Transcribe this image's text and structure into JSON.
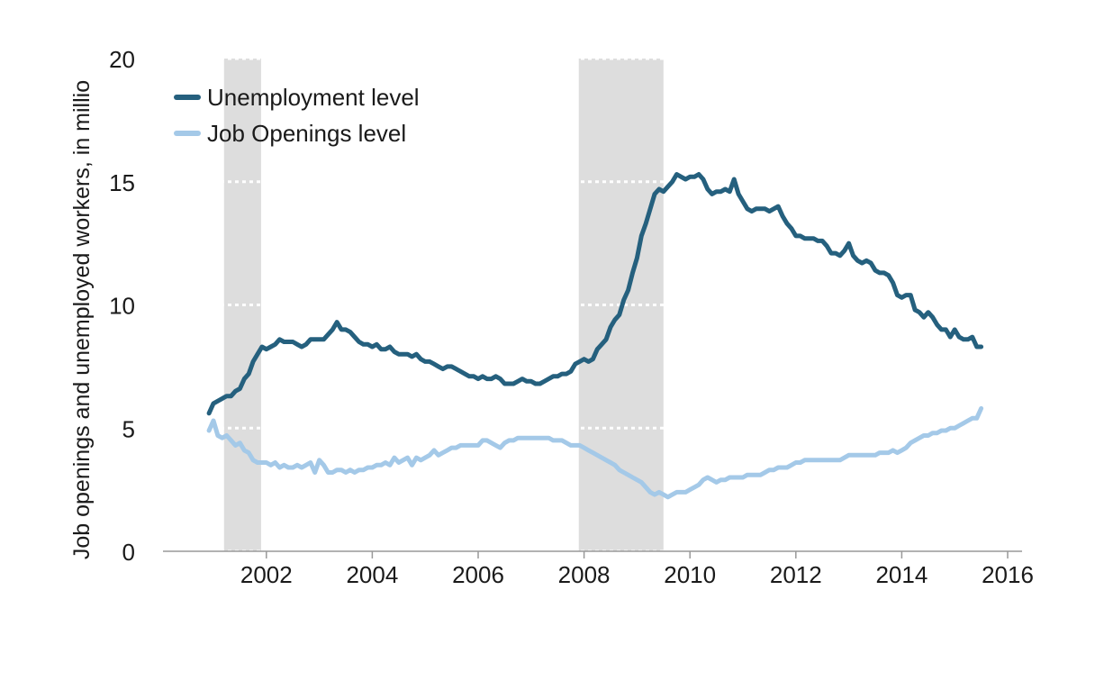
{
  "chart_data": {
    "type": "line",
    "title": "",
    "xlabel": "",
    "ylabel": "Job openings and unemployed workers, in millio",
    "xlim": [
      2000.7,
      2016.2
    ],
    "ylim": [
      0,
      20
    ],
    "x_ticks": [
      2002,
      2004,
      2006,
      2008,
      2010,
      2012,
      2014,
      2016
    ],
    "y_ticks": [
      0,
      5,
      10,
      15,
      20
    ],
    "grid": "horizontal dotted",
    "legend": "top-left",
    "recessions": [
      [
        2001.2,
        2001.9
      ],
      [
        2007.9,
        2009.5
      ]
    ],
    "colors": {
      "unemployment": "#25607e",
      "openings": "#a4c9e8",
      "recession": "#dddddd",
      "grid": "#ffffff",
      "axis": "#999999"
    },
    "series": [
      {
        "name": "Unemployment level",
        "color": "#25607e",
        "x": [
          2000.917,
          2001.0,
          2001.083,
          2001.167,
          2001.25,
          2001.333,
          2001.417,
          2001.5,
          2001.583,
          2001.667,
          2001.75,
          2001.833,
          2001.917,
          2002.0,
          2002.083,
          2002.167,
          2002.25,
          2002.333,
          2002.417,
          2002.5,
          2002.583,
          2002.667,
          2002.75,
          2002.833,
          2002.917,
          2003.0,
          2003.083,
          2003.167,
          2003.25,
          2003.333,
          2003.417,
          2003.5,
          2003.583,
          2003.667,
          2003.75,
          2003.833,
          2003.917,
          2004.0,
          2004.083,
          2004.167,
          2004.25,
          2004.333,
          2004.417,
          2004.5,
          2004.583,
          2004.667,
          2004.75,
          2004.833,
          2004.917,
          2005.0,
          2005.083,
          2005.167,
          2005.25,
          2005.333,
          2005.417,
          2005.5,
          2005.583,
          2005.667,
          2005.75,
          2005.833,
          2005.917,
          2006.0,
          2006.083,
          2006.167,
          2006.25,
          2006.333,
          2006.417,
          2006.5,
          2006.583,
          2006.667,
          2006.75,
          2006.833,
          2006.917,
          2007.0,
          2007.083,
          2007.167,
          2007.25,
          2007.333,
          2007.417,
          2007.5,
          2007.583,
          2007.667,
          2007.75,
          2007.833,
          2007.917,
          2008.0,
          2008.083,
          2008.167,
          2008.25,
          2008.333,
          2008.417,
          2008.5,
          2008.583,
          2008.667,
          2008.75,
          2008.833,
          2008.917,
          2009.0,
          2009.083,
          2009.167,
          2009.25,
          2009.333,
          2009.417,
          2009.5,
          2009.583,
          2009.667,
          2009.75,
          2009.833,
          2009.917,
          2010.0,
          2010.083,
          2010.167,
          2010.25,
          2010.333,
          2010.417,
          2010.5,
          2010.583,
          2010.667,
          2010.75,
          2010.833,
          2010.917,
          2011.0,
          2011.083,
          2011.167,
          2011.25,
          2011.333,
          2011.417,
          2011.5,
          2011.583,
          2011.667,
          2011.75,
          2011.833,
          2011.917,
          2012.0,
          2012.083,
          2012.167,
          2012.25,
          2012.333,
          2012.417,
          2012.5,
          2012.583,
          2012.667,
          2012.75,
          2012.833,
          2012.917,
          2013.0,
          2013.083,
          2013.167,
          2013.25,
          2013.333,
          2013.417,
          2013.5,
          2013.583,
          2013.667,
          2013.75,
          2013.833,
          2013.917,
          2014.0,
          2014.083,
          2014.167,
          2014.25,
          2014.333,
          2014.417,
          2014.5,
          2014.583,
          2014.667,
          2014.75,
          2014.833,
          2014.917,
          2015.0,
          2015.083,
          2015.167,
          2015.25,
          2015.333,
          2015.417,
          2015.5
        ],
        "values": [
          5.6,
          6.0,
          6.1,
          6.2,
          6.3,
          6.3,
          6.5,
          6.6,
          7.0,
          7.2,
          7.7,
          8.0,
          8.3,
          8.2,
          8.3,
          8.4,
          8.6,
          8.5,
          8.5,
          8.5,
          8.4,
          8.3,
          8.4,
          8.6,
          8.6,
          8.6,
          8.6,
          8.8,
          9.0,
          9.3,
          9.0,
          9.0,
          8.9,
          8.7,
          8.5,
          8.4,
          8.4,
          8.3,
          8.4,
          8.2,
          8.2,
          8.3,
          8.1,
          8.0,
          8.0,
          8.0,
          7.9,
          8.0,
          7.8,
          7.7,
          7.7,
          7.6,
          7.5,
          7.4,
          7.5,
          7.5,
          7.4,
          7.3,
          7.2,
          7.1,
          7.1,
          7.0,
          7.1,
          7.0,
          7.0,
          7.1,
          7.0,
          6.8,
          6.8,
          6.8,
          6.9,
          7.0,
          6.9,
          6.9,
          6.8,
          6.8,
          6.9,
          7.0,
          7.1,
          7.1,
          7.2,
          7.2,
          7.3,
          7.6,
          7.7,
          7.8,
          7.7,
          7.8,
          8.2,
          8.4,
          8.6,
          9.1,
          9.4,
          9.6,
          10.2,
          10.6,
          11.3,
          11.9,
          12.8,
          13.3,
          13.9,
          14.5,
          14.7,
          14.6,
          14.8,
          15.0,
          15.3,
          15.2,
          15.1,
          15.2,
          15.2,
          15.3,
          15.1,
          14.7,
          14.5,
          14.6,
          14.6,
          14.7,
          14.6,
          15.1,
          14.5,
          14.2,
          13.9,
          13.8,
          13.9,
          13.9,
          13.9,
          13.8,
          13.9,
          14.0,
          13.6,
          13.3,
          13.1,
          12.8,
          12.8,
          12.7,
          12.7,
          12.7,
          12.6,
          12.6,
          12.4,
          12.1,
          12.1,
          12.0,
          12.2,
          12.5,
          12.0,
          11.8,
          11.7,
          11.8,
          11.7,
          11.4,
          11.3,
          11.3,
          11.2,
          10.9,
          10.4,
          10.3,
          10.4,
          10.4,
          9.8,
          9.7,
          9.5,
          9.7,
          9.5,
          9.2,
          9.0,
          9.0,
          8.7,
          9.0,
          8.7,
          8.6,
          8.6,
          8.7,
          8.3,
          8.3
        ]
      },
      {
        "name": "Job Openings level",
        "color": "#a4c9e8",
        "x": [
          2000.917,
          2001.0,
          2001.083,
          2001.167,
          2001.25,
          2001.333,
          2001.417,
          2001.5,
          2001.583,
          2001.667,
          2001.75,
          2001.833,
          2001.917,
          2002.0,
          2002.083,
          2002.167,
          2002.25,
          2002.333,
          2002.417,
          2002.5,
          2002.583,
          2002.667,
          2002.75,
          2002.833,
          2002.917,
          2003.0,
          2003.083,
          2003.167,
          2003.25,
          2003.333,
          2003.417,
          2003.5,
          2003.583,
          2003.667,
          2003.75,
          2003.833,
          2003.917,
          2004.0,
          2004.083,
          2004.167,
          2004.25,
          2004.333,
          2004.417,
          2004.5,
          2004.583,
          2004.667,
          2004.75,
          2004.833,
          2004.917,
          2005.0,
          2005.083,
          2005.167,
          2005.25,
          2005.333,
          2005.417,
          2005.5,
          2005.583,
          2005.667,
          2005.75,
          2005.833,
          2005.917,
          2006.0,
          2006.083,
          2006.167,
          2006.25,
          2006.333,
          2006.417,
          2006.5,
          2006.583,
          2006.667,
          2006.75,
          2006.833,
          2006.917,
          2007.0,
          2007.083,
          2007.167,
          2007.25,
          2007.333,
          2007.417,
          2007.5,
          2007.583,
          2007.667,
          2007.75,
          2007.833,
          2007.917,
          2008.0,
          2008.083,
          2008.167,
          2008.25,
          2008.333,
          2008.417,
          2008.5,
          2008.583,
          2008.667,
          2008.75,
          2008.833,
          2008.917,
          2009.0,
          2009.083,
          2009.167,
          2009.25,
          2009.333,
          2009.417,
          2009.5,
          2009.583,
          2009.667,
          2009.75,
          2009.833,
          2009.917,
          2010.0,
          2010.083,
          2010.167,
          2010.25,
          2010.333,
          2010.417,
          2010.5,
          2010.583,
          2010.667,
          2010.75,
          2010.833,
          2010.917,
          2011.0,
          2011.083,
          2011.167,
          2011.25,
          2011.333,
          2011.417,
          2011.5,
          2011.583,
          2011.667,
          2011.75,
          2011.833,
          2011.917,
          2012.0,
          2012.083,
          2012.167,
          2012.25,
          2012.333,
          2012.417,
          2012.5,
          2012.583,
          2012.667,
          2012.75,
          2012.833,
          2012.917,
          2013.0,
          2013.083,
          2013.167,
          2013.25,
          2013.333,
          2013.417,
          2013.5,
          2013.583,
          2013.667,
          2013.75,
          2013.833,
          2013.917,
          2014.0,
          2014.083,
          2014.167,
          2014.25,
          2014.333,
          2014.417,
          2014.5,
          2014.583,
          2014.667,
          2014.75,
          2014.833,
          2014.917,
          2015.0,
          2015.083,
          2015.167,
          2015.25,
          2015.333,
          2015.417,
          2015.5
        ],
        "values": [
          4.9,
          5.3,
          4.7,
          4.6,
          4.7,
          4.5,
          4.3,
          4.4,
          4.1,
          4.0,
          3.7,
          3.6,
          3.6,
          3.6,
          3.5,
          3.6,
          3.4,
          3.5,
          3.4,
          3.4,
          3.5,
          3.4,
          3.5,
          3.6,
          3.2,
          3.7,
          3.5,
          3.2,
          3.2,
          3.3,
          3.3,
          3.2,
          3.3,
          3.2,
          3.3,
          3.3,
          3.4,
          3.4,
          3.5,
          3.5,
          3.6,
          3.5,
          3.8,
          3.6,
          3.7,
          3.8,
          3.5,
          3.8,
          3.7,
          3.8,
          3.9,
          4.1,
          3.9,
          4.0,
          4.1,
          4.2,
          4.2,
          4.3,
          4.3,
          4.3,
          4.3,
          4.3,
          4.5,
          4.5,
          4.4,
          4.3,
          4.2,
          4.4,
          4.5,
          4.5,
          4.6,
          4.6,
          4.6,
          4.6,
          4.6,
          4.6,
          4.6,
          4.6,
          4.5,
          4.5,
          4.5,
          4.4,
          4.3,
          4.3,
          4.3,
          4.2,
          4.1,
          4.0,
          3.9,
          3.8,
          3.7,
          3.6,
          3.5,
          3.3,
          3.2,
          3.1,
          3.0,
          2.9,
          2.8,
          2.6,
          2.4,
          2.3,
          2.4,
          2.3,
          2.2,
          2.3,
          2.4,
          2.4,
          2.4,
          2.5,
          2.6,
          2.7,
          2.9,
          3.0,
          2.9,
          2.8,
          2.9,
          2.9,
          3.0,
          3.0,
          3.0,
          3.0,
          3.1,
          3.1,
          3.1,
          3.1,
          3.2,
          3.3,
          3.3,
          3.4,
          3.4,
          3.4,
          3.5,
          3.6,
          3.6,
          3.7,
          3.7,
          3.7,
          3.7,
          3.7,
          3.7,
          3.7,
          3.7,
          3.7,
          3.8,
          3.9,
          3.9,
          3.9,
          3.9,
          3.9,
          3.9,
          3.9,
          4.0,
          4.0,
          4.0,
          4.1,
          4.0,
          4.1,
          4.2,
          4.4,
          4.5,
          4.6,
          4.7,
          4.7,
          4.8,
          4.8,
          4.9,
          4.9,
          5.0,
          5.0,
          5.1,
          5.2,
          5.3,
          5.4,
          5.4,
          5.8
        ]
      }
    ]
  }
}
